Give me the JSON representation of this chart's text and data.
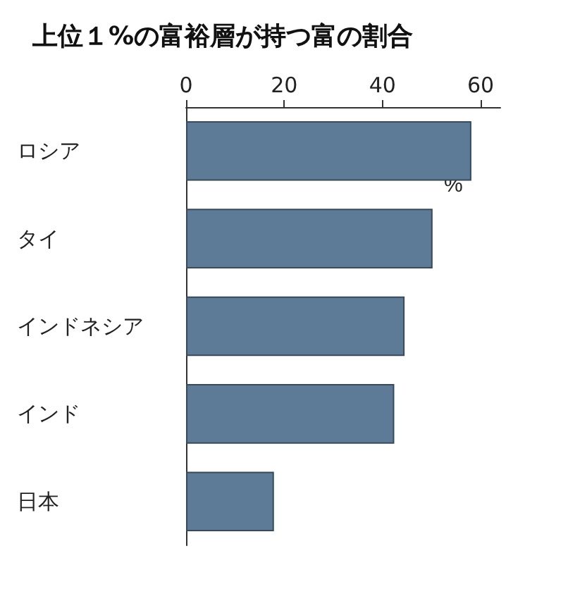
{
  "chart_data": {
    "type": "bar",
    "orientation": "horizontal",
    "title": "上位１%の富裕層が持つ富の割合",
    "xlabel": "%",
    "categories": [
      "ロシア",
      "タイ",
      "インドネシア",
      "インド",
      "日本"
    ],
    "values": [
      58.1,
      50.2,
      44.5,
      42.4,
      17.9
    ],
    "color": "#5d7b96",
    "xlim": [
      0,
      64
    ],
    "xticks": [
      0,
      20,
      40,
      60
    ],
    "grid": false
  }
}
